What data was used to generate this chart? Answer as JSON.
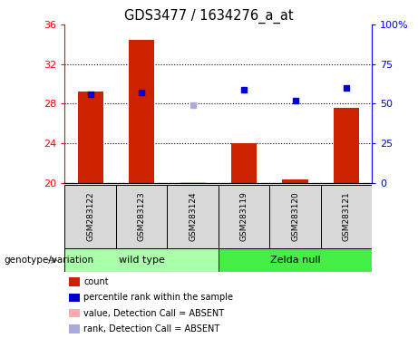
{
  "title": "GDS3477 / 1634276_a_at",
  "samples": [
    "GSM283122",
    "GSM283123",
    "GSM283124",
    "GSM283119",
    "GSM283120",
    "GSM283121"
  ],
  "bar_values": [
    29.2,
    34.4,
    20.05,
    24.0,
    20.3,
    27.6
  ],
  "bar_absent": [
    false,
    false,
    true,
    false,
    false,
    false
  ],
  "rank_values": [
    28.9,
    29.1,
    27.8,
    29.4,
    28.3,
    29.6
  ],
  "rank_absent": [
    false,
    false,
    true,
    false,
    false,
    false
  ],
  "ylim_left": [
    20,
    36
  ],
  "ylim_right": [
    0,
    100
  ],
  "yticks_left": [
    20,
    24,
    28,
    32,
    36
  ],
  "yticks_right": [
    0,
    25,
    50,
    75,
    100
  ],
  "yticklabels_right": [
    "0",
    "25",
    "50",
    "75",
    "100%"
  ],
  "grid_values": [
    24,
    28,
    32
  ],
  "bar_color": "#cc2200",
  "bar_absent_color": "#ffaaaa",
  "rank_color": "#0000cc",
  "rank_absent_color": "#aaaadd",
  "wt_color": "#aaffaa",
  "zn_color": "#44ee44",
  "group_label": "genotype/variation",
  "legend_items": [
    {
      "label": "count",
      "color": "#cc2200"
    },
    {
      "label": "percentile rank within the sample",
      "color": "#0000cc"
    },
    {
      "label": "value, Detection Call = ABSENT",
      "color": "#ffaaaa"
    },
    {
      "label": "rank, Detection Call = ABSENT",
      "color": "#aaaadd"
    }
  ]
}
